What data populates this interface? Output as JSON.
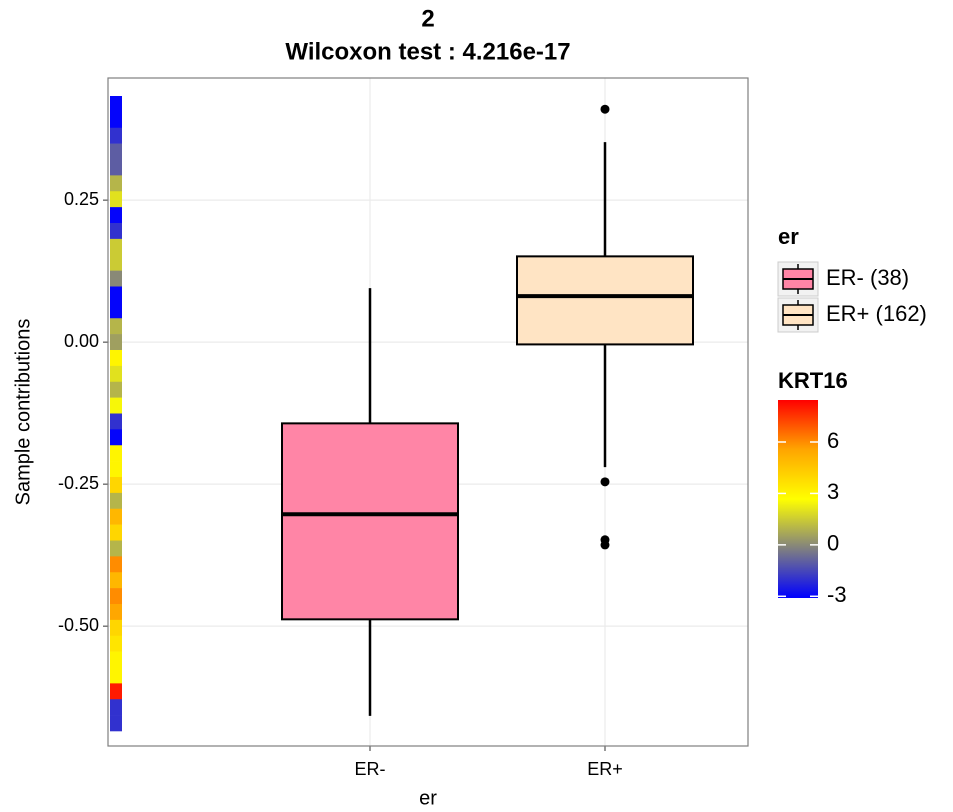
{
  "chart_data": {
    "type": "box",
    "title": "2",
    "subtitle": "Wilcoxon test : 4.216e-17",
    "x_label": "er",
    "y_label": "Sample contributions",
    "categories": [
      "ER-",
      "ER+"
    ],
    "ylim": [
      -0.711,
      0.465
    ],
    "yticks": [
      {
        "value": -0.5,
        "label": "-0.50"
      },
      -0.25,
      {
        "value": 0,
        "label": "0.00"
      },
      0.25
    ],
    "grid": true,
    "legend_title": "er",
    "series": [
      {
        "name": "ER- (38)",
        "color": "#ff85a6",
        "whisker_low": -0.658,
        "q1": -0.488,
        "median": -0.303,
        "q3": -0.143,
        "whisker_high": 0.095,
        "outliers": []
      },
      {
        "name": "ER+ (162)",
        "color": "#ffe4c4",
        "whisker_low": -0.22,
        "q1": -0.004,
        "median": 0.081,
        "q3": 0.151,
        "whisker_high": 0.352,
        "outliers": [
          0.41,
          -0.246,
          -0.348,
          -0.357
        ]
      }
    ],
    "strip_values": [
      -3,
      -3,
      -2,
      -1,
      -1,
      1,
      2,
      -3,
      -2,
      1.5,
      1.5,
      0,
      -3,
      -3,
      1,
      0.5,
      3,
      2,
      1,
      2.5,
      -2,
      -3,
      3,
      3,
      4,
      1,
      5,
      4,
      1,
      6,
      5,
      6,
      5.5,
      4,
      3.5,
      3,
      3,
      8,
      -2,
      -2
    ],
    "colorbar": {
      "title": "KRT16",
      "lim": [
        -3.1,
        8.45
      ],
      "ticks": [
        -3,
        0,
        3,
        6
      ],
      "colors": [
        "#0000ff",
        "#808080",
        "#ffff00",
        "#ffa500",
        "#ff0000"
      ]
    }
  }
}
